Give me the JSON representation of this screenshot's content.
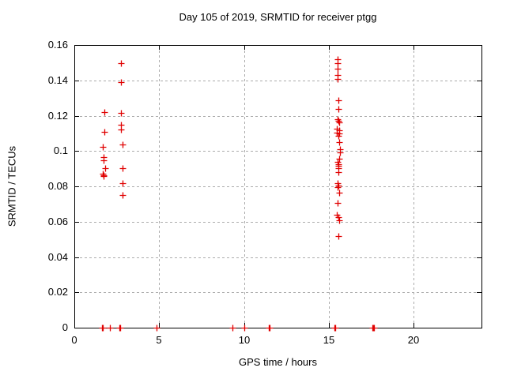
{
  "chart_data": {
    "type": "scatter",
    "title": "Day 105 of 2019, SRMTID for receiver ptgg",
    "xlabel": "GPS time / hours",
    "ylabel": "SRMTID / TECUs",
    "xlim": [
      0,
      24
    ],
    "ylim": [
      0,
      0.16
    ],
    "grid": "dashed",
    "legend": "none",
    "marker": "plus",
    "marker_color": "#e00000",
    "axis_color": "#000000",
    "grid_color": "#ababab",
    "xticks": [
      {
        "v": 0,
        "label": "0"
      },
      {
        "v": 5,
        "label": "5"
      },
      {
        "v": 10,
        "label": "10"
      },
      {
        "v": 15,
        "label": "15"
      },
      {
        "v": 20,
        "label": "20"
      }
    ],
    "yticks": [
      {
        "v": 0,
        "label": "0"
      },
      {
        "v": 0.02,
        "label": "0.02"
      },
      {
        "v": 0.04,
        "label": "0.04"
      },
      {
        "v": 0.06,
        "label": "0.06"
      },
      {
        "v": 0.08,
        "label": "0.08"
      },
      {
        "v": 0.1,
        "label": "0.1"
      },
      {
        "v": 0.12,
        "label": "0.12"
      },
      {
        "v": 0.14,
        "label": "0.14"
      },
      {
        "v": 0.16,
        "label": "0.16"
      }
    ],
    "series": [
      {
        "name": "SRMTID",
        "points": [
          [
            1.78,
            0.122
          ],
          [
            1.76,
            0.1108
          ],
          [
            1.7,
            0.1025
          ],
          [
            1.72,
            0.0966
          ],
          [
            1.73,
            0.0947
          ],
          [
            1.82,
            0.0901
          ],
          [
            1.69,
            0.0872
          ],
          [
            1.71,
            0.0864
          ],
          [
            1.73,
            0.0857
          ],
          [
            2.74,
            0.1495
          ],
          [
            2.76,
            0.1392
          ],
          [
            2.77,
            0.1215
          ],
          [
            2.76,
            0.1147
          ],
          [
            2.76,
            0.1124
          ],
          [
            2.84,
            0.1036
          ],
          [
            2.84,
            0.0905
          ],
          [
            2.84,
            0.082
          ],
          [
            2.84,
            0.075
          ],
          [
            15.53,
            0.1518
          ],
          [
            15.53,
            0.1498
          ],
          [
            15.53,
            0.1464
          ],
          [
            15.53,
            0.143
          ],
          [
            15.53,
            0.1406
          ],
          [
            15.55,
            0.1289
          ],
          [
            15.58,
            0.1237
          ],
          [
            15.5,
            0.1181
          ],
          [
            15.56,
            0.1172
          ],
          [
            15.61,
            0.116
          ],
          [
            15.47,
            0.1126
          ],
          [
            15.6,
            0.1118
          ],
          [
            15.49,
            0.1103
          ],
          [
            15.61,
            0.1099
          ],
          [
            15.57,
            0.1087
          ],
          [
            15.62,
            0.105
          ],
          [
            15.65,
            0.1009
          ],
          [
            15.65,
            0.0991
          ],
          [
            15.6,
            0.0956
          ],
          [
            15.5,
            0.0938
          ],
          [
            15.55,
            0.0927
          ],
          [
            15.58,
            0.0917
          ],
          [
            15.56,
            0.0901
          ],
          [
            15.58,
            0.0879
          ],
          [
            15.5,
            0.082
          ],
          [
            15.55,
            0.0806
          ],
          [
            15.53,
            0.0794
          ],
          [
            15.6,
            0.0764
          ],
          [
            15.51,
            0.0705
          ],
          [
            15.48,
            0.0641
          ],
          [
            15.58,
            0.0626
          ],
          [
            15.6,
            0.0606
          ],
          [
            15.58,
            0.0517
          ],
          [
            1.63,
            0
          ],
          [
            1.66,
            0
          ],
          [
            1.69,
            0
          ],
          [
            2.1,
            0
          ],
          [
            2.64,
            0
          ],
          [
            2.67,
            0
          ],
          [
            2.7,
            0
          ],
          [
            4.85,
            0
          ],
          [
            9.32,
            0
          ],
          [
            10.03,
            0
          ],
          [
            11.48,
            0
          ],
          [
            11.52,
            0
          ],
          [
            15.31,
            0
          ],
          [
            15.35,
            0
          ],
          [
            15.39,
            0
          ],
          [
            17.57,
            0
          ],
          [
            17.61,
            0
          ],
          [
            17.64,
            0
          ]
        ]
      }
    ]
  }
}
